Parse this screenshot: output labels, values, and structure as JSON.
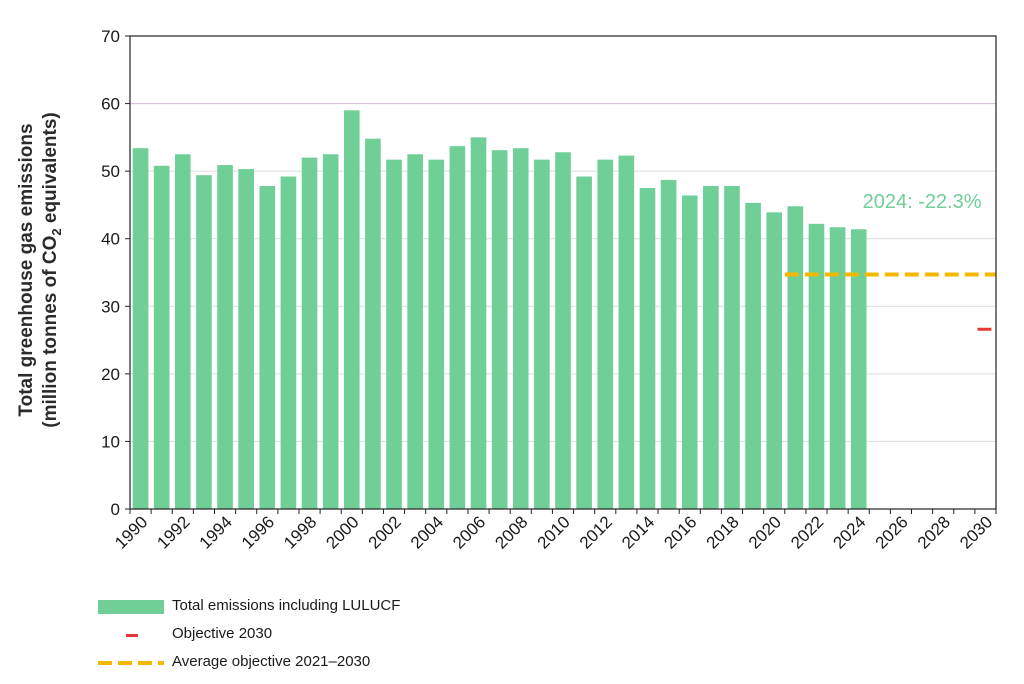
{
  "chart_data": {
    "type": "bar",
    "ylabel_line1": "Total greenhouse gas emissions",
    "ylabel_line2_prefix": "(million tonnes of CO",
    "ylabel_line2_sub": "2",
    "ylabel_line2_suffix": " equivalents)",
    "ylim": [
      0,
      70
    ],
    "yticks": [
      0,
      10,
      20,
      30,
      40,
      50,
      60,
      70
    ],
    "xlim": [
      1990,
      2030
    ],
    "xtick_labels": [
      "1990",
      "1992",
      "1994",
      "1996",
      "1998",
      "2000",
      "2002",
      "2004",
      "2006",
      "2008",
      "2010",
      "2012",
      "2014",
      "2016",
      "2018",
      "2020",
      "2022",
      "2024",
      "2026",
      "2028",
      "2030"
    ],
    "grid": "horizontal",
    "series": [
      {
        "name": "Total emissions including LULUCF",
        "color": "#6fcf97",
        "x": [
          1990,
          1991,
          1992,
          1993,
          1994,
          1995,
          1996,
          1997,
          1998,
          1999,
          2000,
          2001,
          2002,
          2003,
          2004,
          2005,
          2006,
          2007,
          2008,
          2009,
          2010,
          2011,
          2012,
          2013,
          2014,
          2015,
          2016,
          2017,
          2018,
          2019,
          2020,
          2021,
          2022,
          2023,
          2024
        ],
        "values": [
          53.4,
          50.8,
          52.5,
          49.4,
          50.9,
          50.3,
          47.8,
          49.2,
          52.0,
          52.5,
          59.0,
          54.8,
          51.7,
          52.5,
          51.7,
          53.7,
          55.0,
          53.1,
          53.4,
          51.7,
          52.8,
          49.2,
          51.7,
          52.3,
          47.5,
          48.7,
          46.4,
          47.8,
          47.8,
          45.3,
          43.9,
          44.8,
          42.2,
          41.7,
          41.4
        ]
      },
      {
        "name": "Objective 2030",
        "color": "#e53935",
        "x": [
          2030
        ],
        "values": [
          26.6
        ]
      },
      {
        "name": "Average objective 2021–2030",
        "color": "#f5b800",
        "x_range": [
          2021,
          2030
        ],
        "value": 34.7
      }
    ],
    "annotation": {
      "text": "2024: -22.3%",
      "x": 2027,
      "y": 45.6
    },
    "legend_position": "bottom-left"
  }
}
